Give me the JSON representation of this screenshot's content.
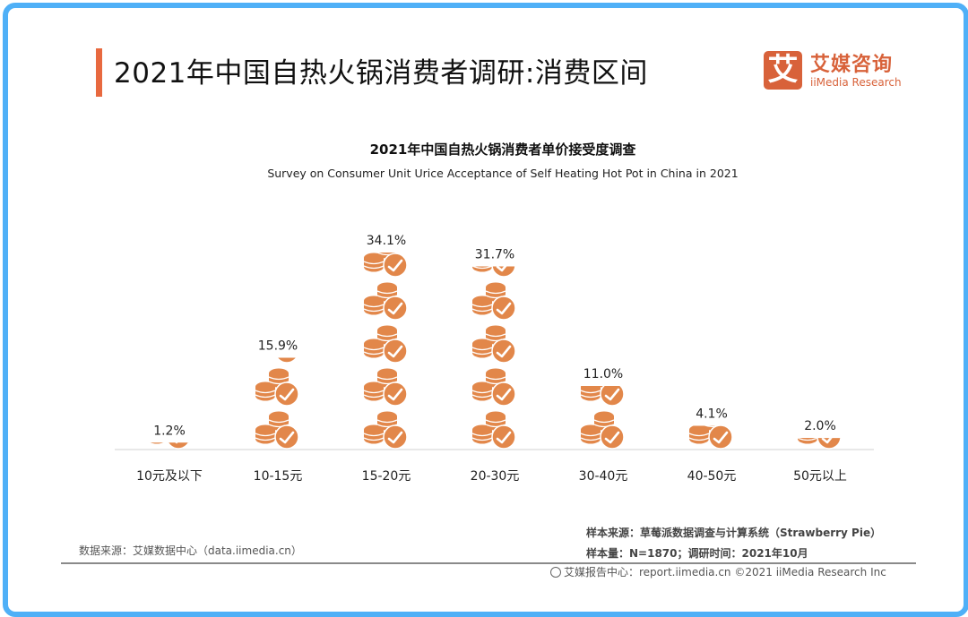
{
  "header": {
    "title": "2021年中国自热火锅消费者调研:消费区间",
    "logo_mark": "艾",
    "logo_cn": "艾媒咨询",
    "logo_en": "iiMedia Research"
  },
  "colors": {
    "frame": "#4fb0f7",
    "accent": "#e8693f",
    "icon": "#e2874a",
    "baseline": "#e0e0e0"
  },
  "chart_data": {
    "type": "bar",
    "title": "2021年中国自热火锅消费者单价接受度调查",
    "subtitle": "Survey on Consumer Unit Urice Acceptance of Self Heating Hot Pot in China in 2021",
    "xlabel": "",
    "ylabel": "",
    "unit": "%",
    "categories": [
      "10元及以下",
      "10-15元",
      "15-20元",
      "20-30元",
      "30-40元",
      "40-50元",
      "50元以上"
    ],
    "values": [
      1.2,
      15.9,
      34.1,
      31.7,
      11.0,
      4.1,
      2.0
    ],
    "labels": [
      "1.2%",
      "15.9%",
      "34.1%",
      "31.7%",
      "11.0%",
      "4.1%",
      "2.0%"
    ],
    "bar_style": "pictorial-coins-with-check",
    "grid": false,
    "legend": "none"
  },
  "footer": {
    "data_source": "数据来源：艾媒数据中心（data.iimedia.cn）",
    "sample_source": "样本来源：草莓派数据调查与计算系统（Strawberry  Pie）",
    "sample_size": "样本量：N=1870；调研时间：2021年10月",
    "report": "艾媒报告中心：report.iimedia.cn   ©2021  iiMedia Research  Inc"
  }
}
